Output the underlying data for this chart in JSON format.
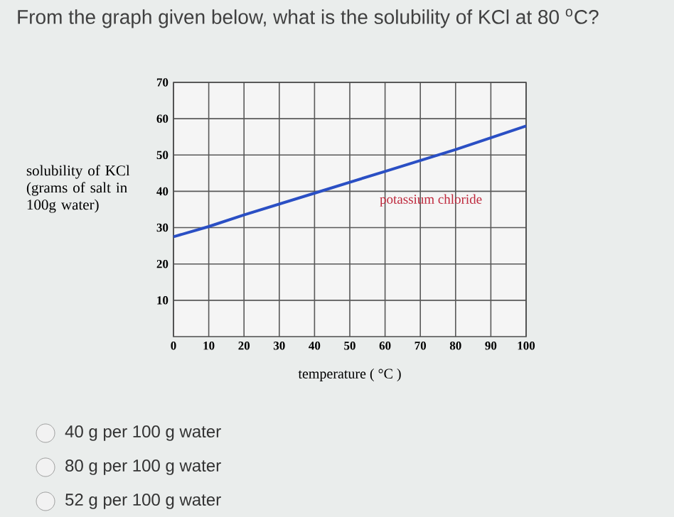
{
  "chart_data": {
    "type": "line",
    "title": "From the graph given below, what is the solubility of KCl at 80 $^{o}$C?",
    "xlabel": "temperature ( °C )",
    "ylabel": "solubility of KCl (grams of salt in 100g water)",
    "x": [
      0,
      10,
      20,
      40,
      60,
      80,
      100
    ],
    "series": [
      {
        "name": "potassium chloride",
        "color": "#2a4fc4",
        "values": [
          27.5,
          30.3,
          33.5,
          39.5,
          45.5,
          51.5,
          58
        ]
      }
    ],
    "xlim": [
      0,
      100
    ],
    "ylim": [
      0,
      70
    ],
    "xticks": [
      0,
      10,
      20,
      30,
      40,
      50,
      60,
      70,
      80,
      90,
      100
    ],
    "yticks": [
      10,
      20,
      30,
      40,
      50,
      60,
      70
    ],
    "grid": true,
    "annotations": [
      "40 g per 100 g water",
      "80 g per 100 g water",
      "52 g per 100 g water"
    ]
  }
}
